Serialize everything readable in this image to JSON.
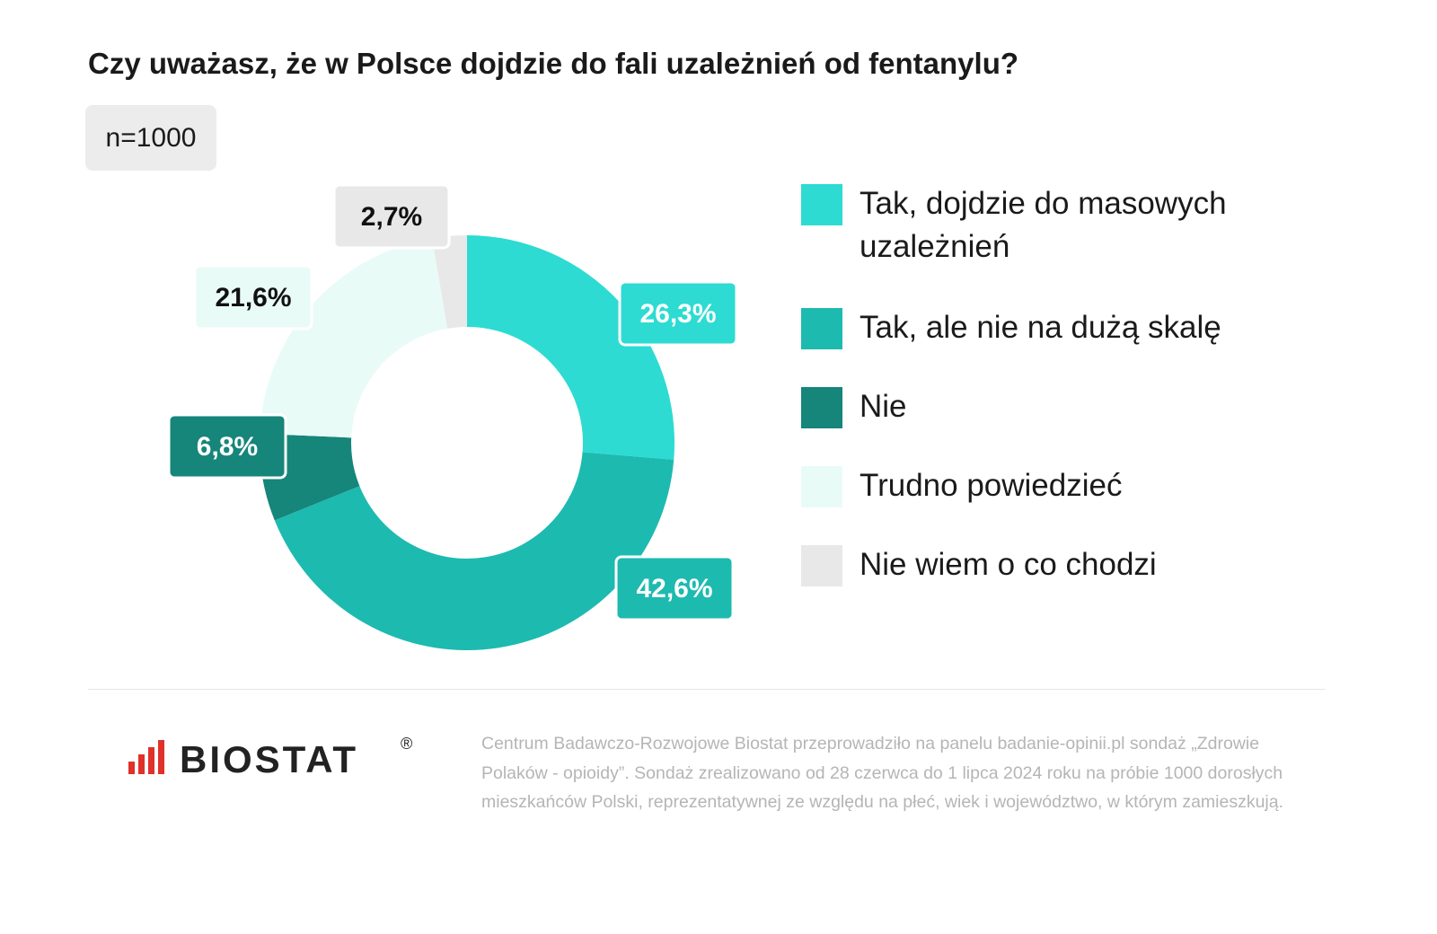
{
  "chart_data": {
    "type": "donut",
    "title": "Czy uważasz, że w Polsce dojdzie do fali uzależnień od fentanylu?",
    "subtitle": "n=1000",
    "categories": [
      "Tak, dojdzie do masowych uzależnień",
      "Tak, ale nie na dużą skalę",
      "Nie",
      "Trudno powiedzieć",
      "Nie wiem o co chodzi"
    ],
    "values": [
      26.3,
      42.6,
      6.8,
      21.6,
      2.7
    ],
    "value_labels": [
      "26,3%",
      "42,6%",
      "6,8%",
      "21,6%",
      "2,7%"
    ],
    "colors": [
      "#2ddbd2",
      "#1dbab0",
      "#16857a",
      "#e9fbf7",
      "#e8e8e8"
    ],
    "legend": "right"
  },
  "footer": {
    "logo": "BIOSTAT",
    "logo_mark": "®",
    "note": "Centrum Badawczo-Rozwojowe Biostat przeprowadziło na panelu badanie-opinii.pl sondaż „Zdrowie Polaków - opioidy”. Sondaż zrealizowano od 28 czerwca do 1 lipca 2024 roku na próbie 1000 dorosłych mieszkańców Polski, reprezentatywnej ze względu na płeć, wiek i województwo, w którym zamieszkują."
  }
}
